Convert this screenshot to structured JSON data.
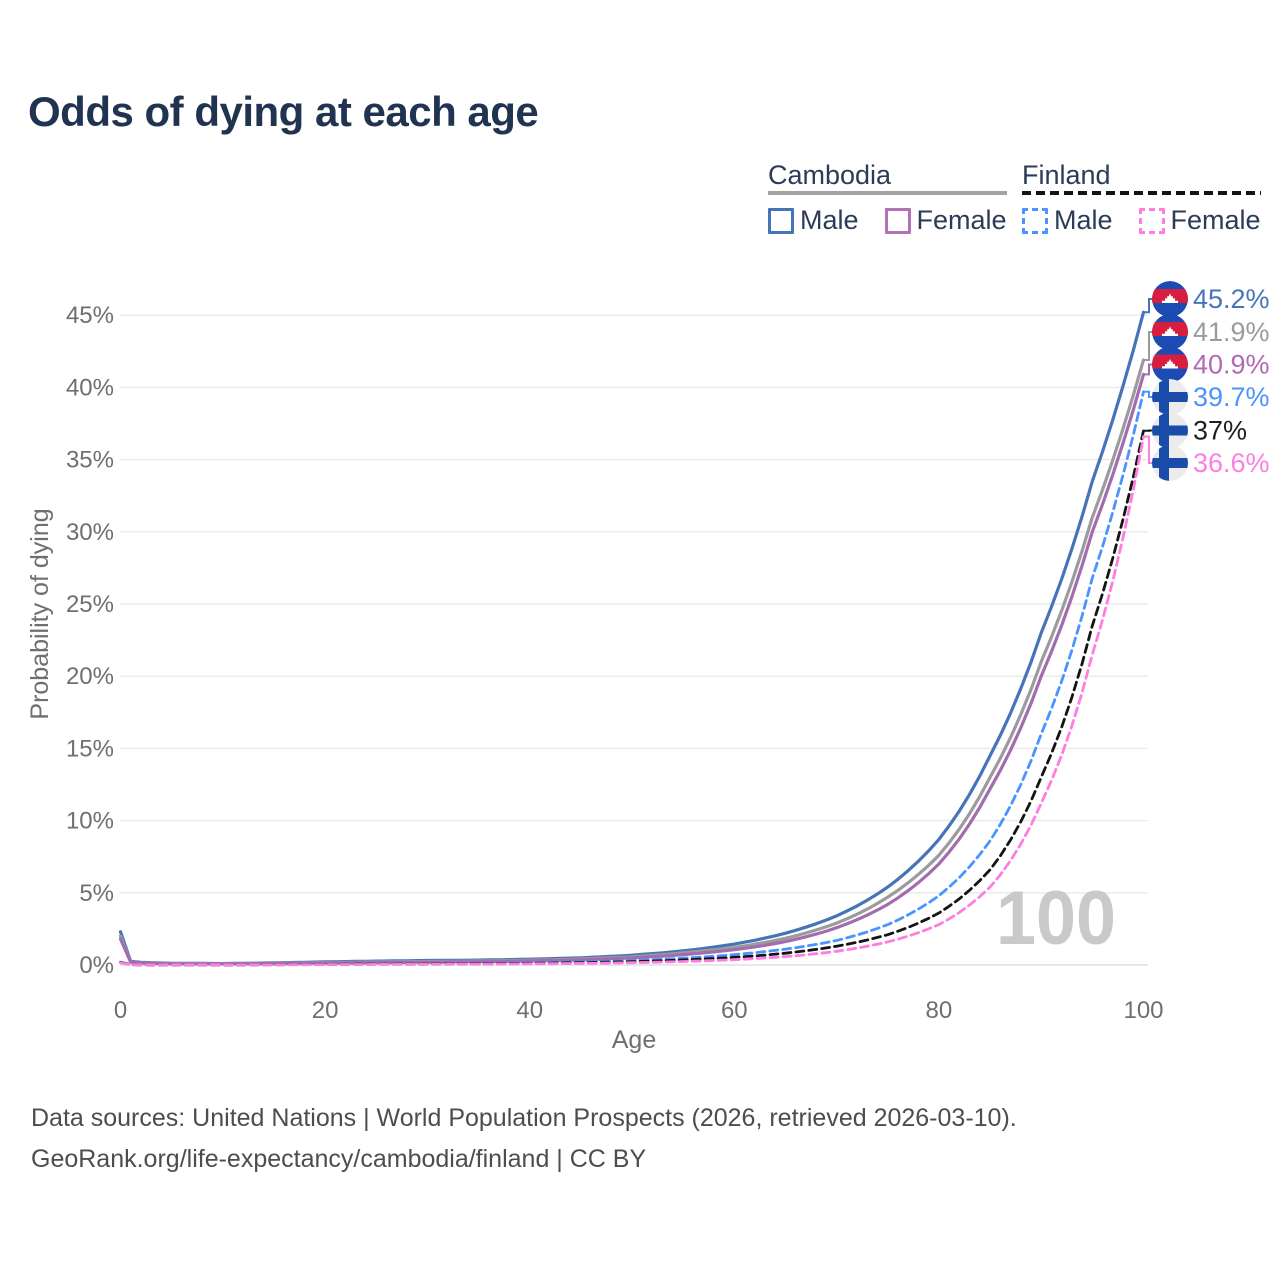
{
  "title": "Odds of dying at each age",
  "legend": {
    "groups": [
      {
        "label": "Cambodia",
        "line_style": "solid",
        "underline_color": "#a3a3a3",
        "items": [
          {
            "label": "Male",
            "color": "#4674b9",
            "dash": false
          },
          {
            "label": "Female",
            "color": "#b173b5",
            "dash": false
          }
        ]
      },
      {
        "label": "Finland",
        "line_style": "dashed",
        "underline_color": "#141414",
        "items": [
          {
            "label": "Male",
            "color": "#4b93fe",
            "dash": true
          },
          {
            "label": "Female",
            "color": "#ff7ce0",
            "dash": true
          }
        ]
      }
    ]
  },
  "chart_data": {
    "type": "line",
    "title": "Odds of dying at each age",
    "xlabel": "Age",
    "ylabel": "Probability of dying",
    "x_ticks": [
      0,
      20,
      40,
      60,
      80,
      100
    ],
    "y_tick_labels": [
      "0%",
      "5%",
      "10%",
      "15%",
      "20%",
      "25%",
      "30%",
      "35%",
      "40%",
      "45%"
    ],
    "xlim": [
      0,
      100
    ],
    "ylim_percent": [
      0,
      46.5
    ],
    "grid": "horizontal",
    "legend_position": "top-right",
    "hover_age_watermark": "100",
    "ages": [
      0,
      1,
      2,
      5,
      10,
      15,
      20,
      25,
      30,
      35,
      40,
      45,
      50,
      55,
      60,
      65,
      70,
      75,
      80,
      85,
      90,
      95,
      100
    ],
    "series": [
      {
        "name": "Cambodia Male",
        "country": "Cambodia",
        "sex": "Male",
        "style": "solid",
        "color": "#4674b9",
        "label_color": "#4674b9",
        "flag": "cambodia",
        "end_label": "45.2%",
        "values_percent": [
          2.3,
          0.25,
          0.18,
          0.12,
          0.1,
          0.15,
          0.22,
          0.27,
          0.31,
          0.34,
          0.4,
          0.5,
          0.68,
          0.98,
          1.45,
          2.2,
          3.4,
          5.4,
          8.7,
          14.5,
          23.0,
          33.5,
          45.2
        ]
      },
      {
        "name": "Cambodia Both sexes",
        "country": "Cambodia",
        "sex": "Both",
        "style": "solid",
        "color": "#9b9b9b",
        "label_color": "#9b9b9b",
        "flag": "cambodia",
        "end_label": "41.9%",
        "values_percent": [
          2.0,
          0.22,
          0.15,
          0.1,
          0.09,
          0.12,
          0.17,
          0.21,
          0.24,
          0.28,
          0.33,
          0.42,
          0.57,
          0.84,
          1.22,
          1.85,
          2.9,
          4.7,
          7.6,
          13.0,
          21.0,
          31.0,
          41.9
        ]
      },
      {
        "name": "Cambodia Female",
        "country": "Cambodia",
        "sex": "Female",
        "style": "solid",
        "color": "#a26cae",
        "label_color": "#b06ab4",
        "flag": "cambodia",
        "end_label": "40.9%",
        "values_percent": [
          1.8,
          0.2,
          0.13,
          0.09,
          0.08,
          0.1,
          0.13,
          0.16,
          0.19,
          0.23,
          0.28,
          0.36,
          0.49,
          0.72,
          1.06,
          1.62,
          2.58,
          4.2,
          7.0,
          12.2,
          20.0,
          30.0,
          40.9
        ]
      },
      {
        "name": "Finland Male",
        "country": "Finland",
        "sex": "Male",
        "style": "dashed",
        "color": "#4b93fe",
        "label_color": "#4b93fe",
        "flag": "finland",
        "end_label": "39.7%",
        "values_percent": [
          0.2,
          0.03,
          0.02,
          0.01,
          0.01,
          0.03,
          0.06,
          0.08,
          0.1,
          0.12,
          0.16,
          0.21,
          0.31,
          0.47,
          0.72,
          1.1,
          1.7,
          2.8,
          4.8,
          8.6,
          16.0,
          26.8,
          39.7
        ]
      },
      {
        "name": "Finland Both sexes",
        "country": "Finland",
        "sex": "Both",
        "style": "dashed",
        "color": "#141414",
        "label_color": "#1f1f1f",
        "flag": "finland",
        "end_label": "37%",
        "values_percent": [
          0.18,
          0.02,
          0.015,
          0.01,
          0.01,
          0.02,
          0.045,
          0.06,
          0.075,
          0.09,
          0.12,
          0.16,
          0.23,
          0.35,
          0.53,
          0.82,
          1.3,
          2.1,
          3.6,
          6.6,
          13.0,
          23.5,
          37.0
        ]
      },
      {
        "name": "Finland Female",
        "country": "Finland",
        "sex": "Female",
        "style": "dashed",
        "color": "#ff7ce0",
        "label_color": "#ff7ce0",
        "flag": "finland",
        "end_label": "36.6%",
        "values_percent": [
          0.16,
          0.02,
          0.012,
          0.008,
          0.008,
          0.015,
          0.03,
          0.04,
          0.05,
          0.06,
          0.08,
          0.11,
          0.16,
          0.24,
          0.37,
          0.58,
          0.95,
          1.6,
          2.8,
          5.4,
          11.2,
          21.5,
          36.6
        ]
      }
    ],
    "flag_colors": {
      "cambodia_blue": "#1c4bb4",
      "cambodia_red": "#d81e3e",
      "finland_bg": "#ebebeb",
      "finland_blue": "#1a4caa"
    },
    "axis_text_color": "#6f6f6f",
    "grid_color": "#eaeaea",
    "watermark_color": "#c9c9c9"
  },
  "footer": {
    "line1": "Data sources: United Nations | World Population Prospects (2026, retrieved 2026-03-10).",
    "line2": "GeoRank.org/life-expectancy/cambodia/finland | CC BY"
  }
}
